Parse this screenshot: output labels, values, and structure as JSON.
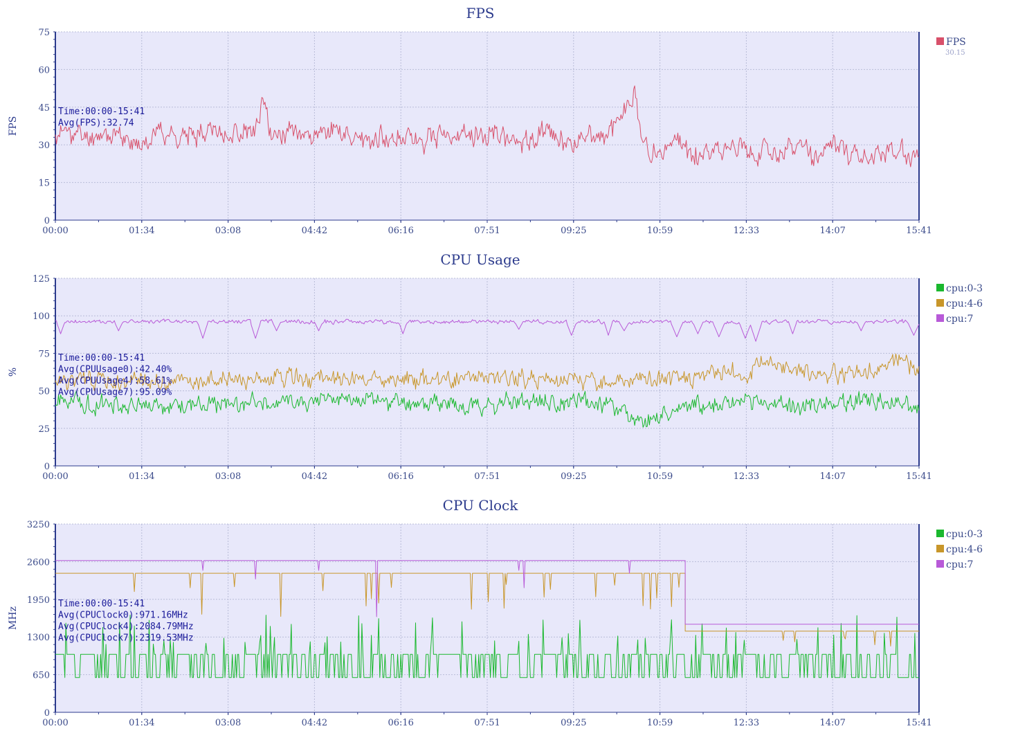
{
  "chart_data": [
    {
      "type": "line",
      "title": "FPS",
      "ylabel": "FPS",
      "ylim": [
        0,
        75
      ],
      "yticks": [
        0,
        15,
        30,
        45,
        60,
        75
      ],
      "x_ticks": [
        "00:00",
        "01:34",
        "03:08",
        "04:42",
        "06:16",
        "07:51",
        "09:25",
        "10:59",
        "12:33",
        "14:07",
        "15:41"
      ],
      "x_range": [
        "00:00",
        "15:41"
      ],
      "annotations": [
        "Time:00:00-15:41",
        "Avg(FPS):32.74"
      ],
      "legend_position": "right",
      "legend_extra": "30.15",
      "series": [
        {
          "name": "FPS",
          "color": "#d8506a",
          "anchors": [
            [
              0,
              32
            ],
            [
              15,
              36
            ],
            [
              40,
              34
            ],
            [
              60,
              33
            ],
            [
              80,
              34
            ],
            [
              110,
              34
            ],
            [
              130,
              33
            ],
            [
              150,
              29
            ],
            [
              175,
              33
            ],
            [
              200,
              36
            ],
            [
              230,
              33
            ],
            [
              260,
              34
            ],
            [
              290,
              37
            ],
            [
              320,
              34
            ],
            [
              340,
              34
            ],
            [
              360,
              36
            ],
            [
              380,
              34
            ],
            [
              395,
              46
            ],
            [
              410,
              34
            ],
            [
              440,
              35
            ],
            [
              460,
              37
            ],
            [
              480,
              34
            ],
            [
              500,
              32
            ],
            [
              530,
              37
            ],
            [
              555,
              33
            ],
            [
              570,
              34
            ],
            [
              600,
              31
            ],
            [
              620,
              34
            ],
            [
              640,
              33
            ],
            [
              670,
              33
            ],
            [
              700,
              30
            ],
            [
              720,
              35
            ],
            [
              740,
              33
            ],
            [
              760,
              32
            ],
            [
              800,
              35
            ],
            [
              850,
              34
            ],
            [
              880,
              32
            ],
            [
              895,
              31
            ],
            [
              920,
              34
            ],
            [
              950,
              34
            ],
            [
              965,
              33
            ],
            [
              975,
              33
            ],
            [
              985,
              30
            ],
            [
              1000,
              34
            ],
            [
              1050,
              33
            ],
            [
              1080,
              43
            ],
            [
              1100,
              52
            ],
            [
              1115,
              30
            ],
            [
              1125,
              30
            ],
            [
              1150,
              27
            ],
            [
              1170,
              29
            ],
            [
              1190,
              31
            ],
            [
              1210,
              25
            ],
            [
              1240,
              26
            ],
            [
              1260,
              28
            ],
            [
              1280,
              32
            ],
            [
              1320,
              27
            ],
            [
              1350,
              28
            ],
            [
              1380,
              26
            ],
            [
              1400,
              29
            ],
            [
              1420,
              28
            ],
            [
              1440,
              24
            ],
            [
              1460,
              26
            ],
            [
              1480,
              31
            ],
            [
              1500,
              27
            ],
            [
              1540,
              25
            ],
            [
              1575,
              29
            ],
            [
              1600,
              27
            ],
            [
              1625,
              24
            ],
            [
              1640,
              25
            ]
          ],
          "amp": 5,
          "seed": 11
        }
      ]
    },
    {
      "type": "line",
      "title": "CPU Usage",
      "ylabel": "%",
      "ylim": [
        0,
        125
      ],
      "yticks": [
        0,
        25,
        50,
        75,
        100,
        125
      ],
      "x_ticks": [
        "00:00",
        "01:34",
        "03:08",
        "04:42",
        "06:16",
        "07:51",
        "09:25",
        "10:59",
        "12:33",
        "14:07",
        "15:41"
      ],
      "x_range": [
        "00:00",
        "15:41"
      ],
      "annotations": [
        "Time:00:00-15:41",
        "Avg(CPUUsage0):42.40%",
        "Avg(CPUUsage4):58.61%",
        "Avg(CPUUsage7):95.09%"
      ],
      "legend_position": "right",
      "series": [
        {
          "name": "cpu:0-3",
          "color": "#1ab82e",
          "anchors": [
            [
              0,
              43
            ],
            [
              200,
              40
            ],
            [
              400,
              42
            ],
            [
              600,
              44
            ],
            [
              800,
              41
            ],
            [
              1000,
              42
            ],
            [
              1080,
              40
            ],
            [
              1100,
              27
            ],
            [
              1200,
              41
            ],
            [
              1300,
              42
            ],
            [
              1400,
              40
            ],
            [
              1500,
              42
            ],
            [
              1600,
              44
            ],
            [
              1640,
              38
            ]
          ],
          "amp": 7,
          "seed": 21
        },
        {
          "name": "cpu:4-6",
          "color": "#c8962a",
          "anchors": [
            [
              0,
              57
            ],
            [
              200,
              56
            ],
            [
              400,
              58
            ],
            [
              600,
              57
            ],
            [
              800,
              59
            ],
            [
              1000,
              57
            ],
            [
              1200,
              58
            ],
            [
              1270,
              65
            ],
            [
              1310,
              60
            ],
            [
              1350,
              72
            ],
            [
              1380,
              66
            ],
            [
              1450,
              60
            ],
            [
              1550,
              64
            ],
            [
              1600,
              72
            ],
            [
              1640,
              62
            ]
          ],
          "amp": 7,
          "seed": 31
        },
        {
          "name": "cpu:7",
          "color": "#b85ad8",
          "anchors": [
            [
              0,
              96
            ],
            [
              1640,
              96
            ]
          ],
          "amp": 1.6,
          "seed": 41,
          "dips": [
            [
              10,
              88,
              4
            ],
            [
              120,
              90,
              4
            ],
            [
              280,
              85,
              5
            ],
            [
              380,
              85,
              5
            ],
            [
              420,
              90,
              4
            ],
            [
              500,
              90,
              4
            ],
            [
              660,
              88,
              4
            ],
            [
              880,
              91,
              4
            ],
            [
              980,
              87,
              5
            ],
            [
              1050,
              87,
              4
            ],
            [
              1080,
              90,
              5
            ],
            [
              1180,
              86,
              6
            ],
            [
              1220,
              88,
              5
            ],
            [
              1260,
              86,
              6
            ],
            [
              1310,
              85,
              6
            ],
            [
              1330,
              83,
              6
            ],
            [
              1400,
              88,
              4
            ],
            [
              1530,
              90,
              4
            ],
            [
              1630,
              87,
              6
            ]
          ]
        }
      ]
    },
    {
      "type": "line",
      "title": "CPU Clock",
      "ylabel": "MHz",
      "ylim": [
        0,
        3250
      ],
      "yticks": [
        0,
        650,
        1300,
        1950,
        2600,
        3250
      ],
      "x_ticks": [
        "00:00",
        "01:34",
        "03:08",
        "04:42",
        "06:16",
        "07:51",
        "09:25",
        "10:59",
        "12:33",
        "14:07",
        "15:41"
      ],
      "x_range": [
        "00:00",
        "15:41"
      ],
      "annotations": [
        "Time:00:00-15:41",
        "Avg(CPUClock0):971.16MHz",
        "Avg(CPUClock4):2084.79MHz",
        "Avg(CPUClock7):2319.53MHz"
      ],
      "legend_position": "right",
      "series": [
        {
          "name": "cpu:0-3",
          "color": "#1ab82e",
          "kind": "levels",
          "levels": [
            600,
            1000
          ],
          "spikes": [
            1400,
            1700
          ],
          "seed": 51
        },
        {
          "name": "cpu:4-6",
          "color": "#c8962a",
          "kind": "steps",
          "steps": [
            [
              0,
              2400
            ],
            [
              1195,
              2400
            ],
            [
              1196,
              1400
            ],
            [
              1640,
              1400
            ]
          ],
          "dips_random": true,
          "seed": 61
        },
        {
          "name": "cpu:7",
          "color": "#b85ad8",
          "kind": "steps",
          "steps": [
            [
              0,
              2620
            ],
            [
              1195,
              2620
            ],
            [
              1196,
              1520
            ],
            [
              1640,
              1520
            ]
          ],
          "dips": [
            [
              280,
              2450
            ],
            [
              295,
              2350
            ],
            [
              380,
              2300
            ],
            [
              500,
              2450
            ],
            [
              610,
              1650
            ],
            [
              880,
              2450
            ],
            [
              890,
              2150
            ],
            [
              1090,
              2400
            ]
          ],
          "seed": 71
        }
      ]
    }
  ]
}
